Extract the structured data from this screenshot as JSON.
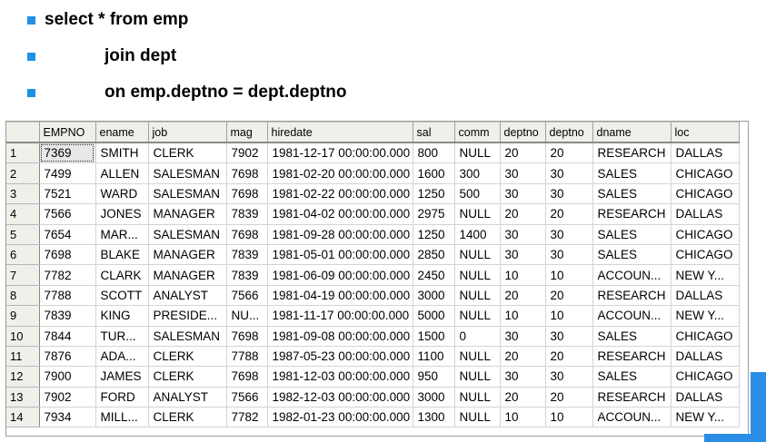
{
  "bullets": [
    {
      "text": "select * from emp"
    },
    {
      "text": "join dept"
    },
    {
      "text": "on emp.deptno = dept.deptno"
    }
  ],
  "colors": {
    "bullet": "#1e90e6",
    "header_bg": "#f0efea",
    "scrollbar": "#2a8ee6"
  },
  "grid": {
    "columns": [
      "EMPNO",
      "ename",
      "job",
      "mag",
      "hiredate",
      "sal",
      "comm",
      "deptno",
      "deptno",
      "dname",
      "loc"
    ],
    "rows": [
      [
        "1",
        "7369",
        "SMITH",
        "CLERK",
        "7902",
        "1981-12-17 00:00:00.000",
        "800",
        "NULL",
        "20",
        "20",
        "RESEARCH",
        "DALLAS"
      ],
      [
        "2",
        "7499",
        "ALLEN",
        "SALESMAN",
        "7698",
        "1981-02-20 00:00:00.000",
        "1600",
        "300",
        "30",
        "30",
        "SALES",
        "CHICAGO"
      ],
      [
        "3",
        "7521",
        "WARD",
        "SALESMAN",
        "7698",
        "1981-02-22 00:00:00.000",
        "1250",
        "500",
        "30",
        "30",
        "SALES",
        "CHICAGO"
      ],
      [
        "4",
        "7566",
        "JONES",
        "MANAGER",
        "7839",
        "1981-04-02 00:00:00.000",
        "2975",
        "NULL",
        "20",
        "20",
        "RESEARCH",
        "DALLAS"
      ],
      [
        "5",
        "7654",
        "MAR...",
        "SALESMAN",
        "7698",
        "1981-09-28 00:00:00.000",
        "1250",
        "1400",
        "30",
        "30",
        "SALES",
        "CHICAGO"
      ],
      [
        "6",
        "7698",
        "BLAKE",
        "MANAGER",
        "7839",
        "1981-05-01 00:00:00.000",
        "2850",
        "NULL",
        "30",
        "30",
        "SALES",
        "CHICAGO"
      ],
      [
        "7",
        "7782",
        "CLARK",
        "MANAGER",
        "7839",
        "1981-06-09 00:00:00.000",
        "2450",
        "NULL",
        "10",
        "10",
        "ACCOUN...",
        "NEW Y..."
      ],
      [
        "8",
        "7788",
        "SCOTT",
        "ANALYST",
        "7566",
        "1981-04-19 00:00:00.000",
        "3000",
        "NULL",
        "20",
        "20",
        "RESEARCH",
        "DALLAS"
      ],
      [
        "9",
        "7839",
        "KING",
        "PRESIDE...",
        "NU...",
        "1981-11-17 00:00:00.000",
        "5000",
        "NULL",
        "10",
        "10",
        "ACCOUN...",
        "NEW Y..."
      ],
      [
        "10",
        "7844",
        "TUR...",
        "SALESMAN",
        "7698",
        "1981-09-08 00:00:00.000",
        "1500",
        "0",
        "30",
        "30",
        "SALES",
        "CHICAGO"
      ],
      [
        "11",
        "7876",
        "ADA...",
        "CLERK",
        "7788",
        "1987-05-23 00:00:00.000",
        "1100",
        "NULL",
        "20",
        "20",
        "RESEARCH",
        "DALLAS"
      ],
      [
        "12",
        "7900",
        "JAMES",
        "CLERK",
        "7698",
        "1981-12-03 00:00:00.000",
        "950",
        "NULL",
        "30",
        "30",
        "SALES",
        "CHICAGO"
      ],
      [
        "13",
        "7902",
        "FORD",
        "ANALYST",
        "7566",
        "1982-12-03 00:00:00.000",
        "3000",
        "NULL",
        "20",
        "20",
        "RESEARCH",
        "DALLAS"
      ],
      [
        "14",
        "7934",
        "MILL...",
        "CLERK",
        "7782",
        "1982-01-23 00:00:00.000",
        "1300",
        "NULL",
        "10",
        "10",
        "ACCOUN...",
        "NEW Y..."
      ]
    ]
  }
}
